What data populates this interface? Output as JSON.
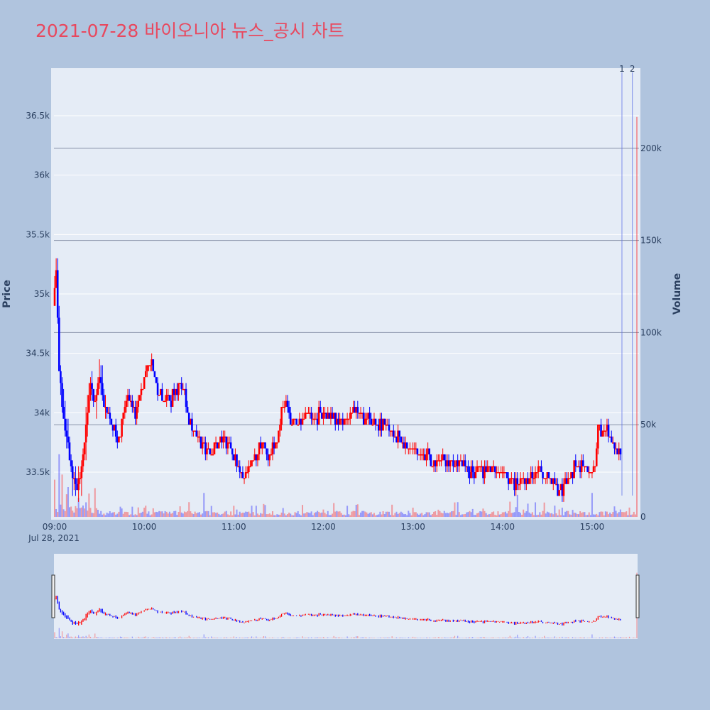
{
  "title": "2021-07-28 바이오니아 뉴스_공시 차트",
  "chart_data": {
    "type": "candlestick",
    "date_label": "Jul 28, 2021",
    "x_tick_labels": [
      "09:00",
      "10:00",
      "11:00",
      "12:00",
      "13:00",
      "14:00",
      "15:00"
    ],
    "price_axis": {
      "title": "Price",
      "range": [
        33100,
        36900
      ],
      "tick_values": [
        33500,
        34000,
        34500,
        35000,
        35500,
        36000,
        36500
      ],
      "tick_labels": [
        "33.5k",
        "34k",
        "34.5k",
        "35k",
        "35.5k",
        "36k",
        "36.5k"
      ]
    },
    "volume_axis": {
      "title": "Volume",
      "range": [
        0,
        235000
      ],
      "tick_values": [
        0,
        50000,
        100000,
        150000,
        200000
      ],
      "tick_labels": [
        "0",
        "50k",
        "100k",
        "150k",
        "200k"
      ]
    },
    "markers": [
      {
        "label": "1",
        "time": "15:20"
      },
      {
        "label": "2",
        "time": "15:27"
      }
    ],
    "colors": {
      "up": "#ff0000",
      "down": "#0000ff"
    },
    "price_path": [
      [
        "09:00",
        34900
      ],
      [
        "09:02",
        35150
      ],
      [
        "09:04",
        34400
      ],
      [
        "09:06",
        34100
      ],
      [
        "09:08",
        33850
      ],
      [
        "09:10",
        33700
      ],
      [
        "09:12",
        33550
      ],
      [
        "09:14",
        33450
      ],
      [
        "09:16",
        33300
      ],
      [
        "09:19",
        33550
      ],
      [
        "09:22",
        33900
      ],
      [
        "09:25",
        34250
      ],
      [
        "09:28",
        34100
      ],
      [
        "09:31",
        34300
      ],
      [
        "09:34",
        34050
      ],
      [
        "09:37",
        33950
      ],
      [
        "09:40",
        33900
      ],
      [
        "09:43",
        33750
      ],
      [
        "09:46",
        33900
      ],
      [
        "09:49",
        34150
      ],
      [
        "09:52",
        34100
      ],
      [
        "09:55",
        34000
      ],
      [
        "09:58",
        34150
      ],
      [
        "10:01",
        34300
      ],
      [
        "10:04",
        34450
      ],
      [
        "10:07",
        34350
      ],
      [
        "10:10",
        34200
      ],
      [
        "10:13",
        34100
      ],
      [
        "10:16",
        34150
      ],
      [
        "10:19",
        34100
      ],
      [
        "10:22",
        34200
      ],
      [
        "10:25",
        34250
      ],
      [
        "10:28",
        34150
      ],
      [
        "10:31",
        33900
      ],
      [
        "10:35",
        33800
      ],
      [
        "10:40",
        33750
      ],
      [
        "10:45",
        33650
      ],
      [
        "10:50",
        33700
      ],
      [
        "10:55",
        33800
      ],
      [
        "11:00",
        33650
      ],
      [
        "11:05",
        33500
      ],
      [
        "11:08",
        33450
      ],
      [
        "11:12",
        33550
      ],
      [
        "11:15",
        33650
      ],
      [
        "11:20",
        33700
      ],
      [
        "11:25",
        33650
      ],
      [
        "11:30",
        33750
      ],
      [
        "11:33",
        34000
      ],
      [
        "11:36",
        34100
      ],
      [
        "11:40",
        33900
      ],
      [
        "11:45",
        33900
      ],
      [
        "11:50",
        34000
      ],
      [
        "11:55",
        33950
      ],
      [
        "12:00",
        34000
      ],
      [
        "12:05",
        34000
      ],
      [
        "12:10",
        33900
      ],
      [
        "12:15",
        33950
      ],
      [
        "12:20",
        34000
      ],
      [
        "12:25",
        34000
      ],
      [
        "12:30",
        33950
      ],
      [
        "12:35",
        33900
      ],
      [
        "12:40",
        33900
      ],
      [
        "12:45",
        33850
      ],
      [
        "12:50",
        33800
      ],
      [
        "12:55",
        33750
      ],
      [
        "13:00",
        33700
      ],
      [
        "13:05",
        33650
      ],
      [
        "13:10",
        33650
      ],
      [
        "13:15",
        33600
      ],
      [
        "13:20",
        33600
      ],
      [
        "13:25",
        33600
      ],
      [
        "13:30",
        33550
      ],
      [
        "13:35",
        33550
      ],
      [
        "13:40",
        33500
      ],
      [
        "13:45",
        33550
      ],
      [
        "13:50",
        33500
      ],
      [
        "13:55",
        33500
      ],
      [
        "14:00",
        33500
      ],
      [
        "14:05",
        33450
      ],
      [
        "14:10",
        33400
      ],
      [
        "14:15",
        33450
      ],
      [
        "14:20",
        33450
      ],
      [
        "14:25",
        33500
      ],
      [
        "14:30",
        33450
      ],
      [
        "14:35",
        33400
      ],
      [
        "14:40",
        33350
      ],
      [
        "14:45",
        33450
      ],
      [
        "14:50",
        33550
      ],
      [
        "14:55",
        33550
      ],
      [
        "15:00",
        33500
      ],
      [
        "15:03",
        33550
      ],
      [
        "15:05",
        33850
      ],
      [
        "15:08",
        33800
      ],
      [
        "15:10",
        33850
      ],
      [
        "15:13",
        33800
      ],
      [
        "15:16",
        33700
      ],
      [
        "15:19",
        33650
      ]
    ],
    "volume_spikes": [
      [
        "09:00",
        18000
      ],
      [
        "09:03",
        32000
      ],
      [
        "09:05",
        20000
      ],
      [
        "09:09",
        12000
      ],
      [
        "09:16",
        10000
      ],
      [
        "09:23",
        11000
      ],
      [
        "09:27",
        15000
      ],
      [
        "10:00",
        5000
      ],
      [
        "10:30",
        8000
      ],
      [
        "10:40",
        13000
      ],
      [
        "11:00",
        6000
      ],
      [
        "11:20",
        7000
      ],
      [
        "12:00",
        4000
      ],
      [
        "13:00",
        5000
      ],
      [
        "13:30",
        8000
      ],
      [
        "14:10",
        12000
      ],
      [
        "14:40",
        5000
      ],
      [
        "15:00",
        13000
      ],
      [
        "15:30",
        217000
      ]
    ]
  }
}
